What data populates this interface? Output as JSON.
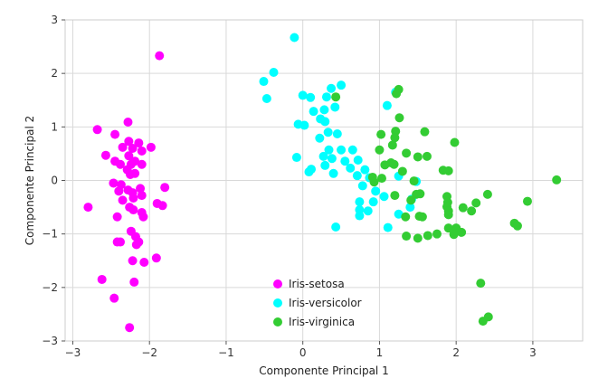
{
  "chart_data": {
    "type": "scatter",
    "title": "",
    "xlabel": "Componente Principal 1",
    "ylabel": "Componente Principal 2",
    "xlim": [
      -3.1,
      3.65
    ],
    "ylim": [
      -3.0,
      3.0
    ],
    "xticks": [
      -3,
      -2,
      -1,
      0,
      1,
      2,
      3
    ],
    "yticks": [
      -3,
      -2,
      -1,
      0,
      1,
      2,
      3
    ],
    "grid": true,
    "legend_position": "bottom-center",
    "series": [
      {
        "name": "Iris-setosa",
        "color": "#ff00ff",
        "points": [
          [
            -1.87,
            2.33
          ],
          [
            -2.28,
            1.09
          ],
          [
            -2.68,
            0.95
          ],
          [
            -2.45,
            0.86
          ],
          [
            -2.14,
            0.7
          ],
          [
            -1.98,
            0.62
          ],
          [
            -2.27,
            0.73
          ],
          [
            -2.35,
            0.62
          ],
          [
            -2.57,
            0.47
          ],
          [
            -2.22,
            0.6
          ],
          [
            -2.1,
            0.55
          ],
          [
            -2.27,
            0.46
          ],
          [
            -2.45,
            0.36
          ],
          [
            -2.19,
            0.36
          ],
          [
            -2.38,
            0.3
          ],
          [
            -2.24,
            0.3
          ],
          [
            -2.1,
            0.3
          ],
          [
            -2.29,
            0.2
          ],
          [
            -2.25,
            0.11
          ],
          [
            -2.19,
            0.13
          ],
          [
            -2.47,
            -0.05
          ],
          [
            -2.37,
            -0.08
          ],
          [
            -2.28,
            -0.18
          ],
          [
            -2.22,
            -0.23
          ],
          [
            -2.12,
            -0.15
          ],
          [
            -1.8,
            -0.13
          ],
          [
            -2.4,
            -0.2
          ],
          [
            -2.1,
            -0.28
          ],
          [
            -2.21,
            -0.33
          ],
          [
            -2.35,
            -0.37
          ],
          [
            -1.9,
            -0.43
          ],
          [
            -1.83,
            -0.47
          ],
          [
            -2.8,
            -0.5
          ],
          [
            -2.26,
            -0.5
          ],
          [
            -2.21,
            -0.55
          ],
          [
            -2.1,
            -0.6
          ],
          [
            -2.42,
            -0.68
          ],
          [
            -2.08,
            -0.68
          ],
          [
            -2.24,
            -0.95
          ],
          [
            -2.18,
            -1.05
          ],
          [
            -2.38,
            -1.15
          ],
          [
            -2.42,
            -1.15
          ],
          [
            -2.14,
            -1.15
          ],
          [
            -2.17,
            -1.2
          ],
          [
            -1.91,
            -1.45
          ],
          [
            -2.22,
            -1.5
          ],
          [
            -2.07,
            -1.53
          ],
          [
            -2.62,
            -1.85
          ],
          [
            -2.2,
            -1.9
          ],
          [
            -2.46,
            -2.2
          ],
          [
            -2.26,
            -2.75
          ]
        ]
      },
      {
        "name": "Iris-versicolor",
        "color": "#00ffff",
        "points": [
          [
            -0.11,
            2.67
          ],
          [
            -0.38,
            2.02
          ],
          [
            -0.51,
            1.85
          ],
          [
            -0.47,
            1.53
          ],
          [
            0.0,
            1.59
          ],
          [
            0.1,
            1.55
          ],
          [
            0.31,
            1.56
          ],
          [
            0.5,
            1.78
          ],
          [
            0.37,
            1.72
          ],
          [
            1.1,
            1.4
          ],
          [
            1.21,
            1.65
          ],
          [
            0.14,
            1.29
          ],
          [
            0.28,
            1.32
          ],
          [
            0.42,
            1.37
          ],
          [
            0.23,
            1.15
          ],
          [
            0.29,
            1.1
          ],
          [
            -0.06,
            1.05
          ],
          [
            0.02,
            1.03
          ],
          [
            0.33,
            0.9
          ],
          [
            0.22,
            0.79
          ],
          [
            0.45,
            0.87
          ],
          [
            0.34,
            0.57
          ],
          [
            0.65,
            0.57
          ],
          [
            0.5,
            0.57
          ],
          [
            0.27,
            0.45
          ],
          [
            -0.08,
            0.43
          ],
          [
            0.72,
            0.38
          ],
          [
            0.38,
            0.41
          ],
          [
            0.55,
            0.36
          ],
          [
            0.11,
            0.21
          ],
          [
            0.29,
            0.28
          ],
          [
            0.62,
            0.23
          ],
          [
            0.81,
            0.2
          ],
          [
            0.08,
            0.16
          ],
          [
            0.4,
            0.13
          ],
          [
            0.71,
            0.09
          ],
          [
            0.87,
            0.05
          ],
          [
            0.78,
            -0.1
          ],
          [
            1.25,
            0.08
          ],
          [
            1.48,
            -0.02
          ],
          [
            0.95,
            -0.2
          ],
          [
            1.06,
            -0.3
          ],
          [
            0.74,
            -0.4
          ],
          [
            0.92,
            -0.4
          ],
          [
            1.42,
            -0.35
          ],
          [
            0.74,
            -0.55
          ],
          [
            0.85,
            -0.57
          ],
          [
            1.4,
            -0.5
          ],
          [
            1.25,
            -0.63
          ],
          [
            0.74,
            -0.66
          ],
          [
            1.11,
            -0.88
          ],
          [
            0.43,
            -0.87
          ]
        ]
      },
      {
        "name": "Iris-virginica",
        "color": "#33cc33",
        "points": [
          [
            0.43,
            1.56
          ],
          [
            1.25,
            1.7
          ],
          [
            1.22,
            1.62
          ],
          [
            1.26,
            1.17
          ],
          [
            1.21,
            0.92
          ],
          [
            1.02,
            0.86
          ],
          [
            1.2,
            0.8
          ],
          [
            1.59,
            0.91
          ],
          [
            1.98,
            0.71
          ],
          [
            1.17,
            0.66
          ],
          [
            1.0,
            0.57
          ],
          [
            1.35,
            0.51
          ],
          [
            1.5,
            0.44
          ],
          [
            1.62,
            0.45
          ],
          [
            1.15,
            0.33
          ],
          [
            1.07,
            0.29
          ],
          [
            1.19,
            0.3
          ],
          [
            1.83,
            0.19
          ],
          [
            1.9,
            0.18
          ],
          [
            1.3,
            0.17
          ],
          [
            0.91,
            0.06
          ],
          [
            1.03,
            0.04
          ],
          [
            1.45,
            -0.01
          ],
          [
            3.31,
            0.01
          ],
          [
            0.93,
            -0.03
          ],
          [
            1.2,
            -0.28
          ],
          [
            1.53,
            -0.25
          ],
          [
            1.48,
            -0.26
          ],
          [
            2.41,
            -0.26
          ],
          [
            1.88,
            -0.3
          ],
          [
            1.41,
            -0.37
          ],
          [
            1.89,
            -0.41
          ],
          [
            2.26,
            -0.42
          ],
          [
            1.88,
            -0.49
          ],
          [
            2.09,
            -0.51
          ],
          [
            2.2,
            -0.57
          ],
          [
            2.93,
            -0.39
          ],
          [
            1.9,
            -0.57
          ],
          [
            1.52,
            -0.67
          ],
          [
            1.34,
            -0.68
          ],
          [
            1.9,
            -0.64
          ],
          [
            1.56,
            -0.68
          ],
          [
            2.76,
            -0.8
          ],
          [
            2.8,
            -0.85
          ],
          [
            2.0,
            -0.89
          ],
          [
            1.9,
            -0.89
          ],
          [
            1.75,
            -1.0
          ],
          [
            1.97,
            -1.01
          ],
          [
            2.07,
            -0.97
          ],
          [
            1.63,
            -1.03
          ],
          [
            1.35,
            -1.04
          ],
          [
            1.5,
            -1.08
          ],
          [
            2.32,
            -1.92
          ],
          [
            2.35,
            -2.63
          ],
          [
            2.42,
            -2.55
          ]
        ]
      }
    ]
  }
}
